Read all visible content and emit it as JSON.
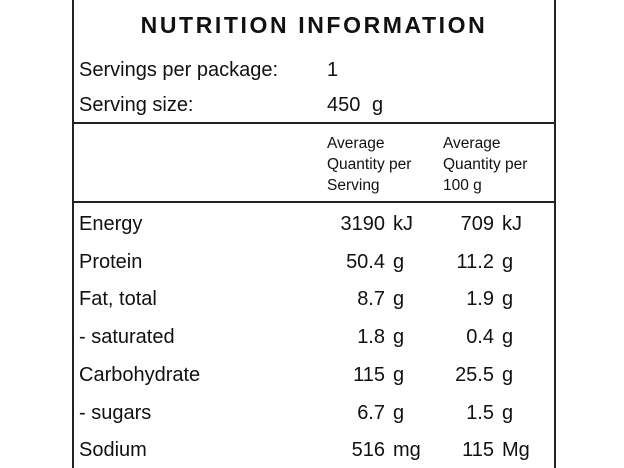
{
  "title": "NUTRITION INFORMATION",
  "servings_per_package": {
    "label": "Servings per package:",
    "value": "1"
  },
  "serving_size": {
    "label": "Serving size:",
    "value": "450",
    "unit": "g"
  },
  "headers": {
    "per_serving": [
      "Average",
      "Quantity per",
      "Serving"
    ],
    "per_100g": [
      "Average",
      "Quantity per",
      "100 g"
    ]
  },
  "rows": [
    {
      "label": "Energy",
      "serving": "3190",
      "serving_unit": "kJ",
      "per100": "709",
      "per100_unit": "kJ"
    },
    {
      "label": "Protein",
      "serving": "50.4",
      "serving_unit": "g",
      "per100": "11.2",
      "per100_unit": "g"
    },
    {
      "label": "Fat, total",
      "serving": "8.7",
      "serving_unit": "g",
      "per100": "1.9",
      "per100_unit": "g"
    },
    {
      "label": "- saturated",
      "serving": "1.8",
      "serving_unit": "g",
      "per100": "0.4",
      "per100_unit": "g"
    },
    {
      "label": "Carbohydrate",
      "serving": "115",
      "serving_unit": "g",
      "per100": "25.5",
      "per100_unit": "g"
    },
    {
      "label": "- sugars",
      "serving": "6.7",
      "serving_unit": "g",
      "per100": "1.5",
      "per100_unit": "g"
    },
    {
      "label": "Sodium",
      "serving": "516",
      "serving_unit": "mg",
      "per100": "115",
      "per100_unit": "Mg"
    }
  ]
}
